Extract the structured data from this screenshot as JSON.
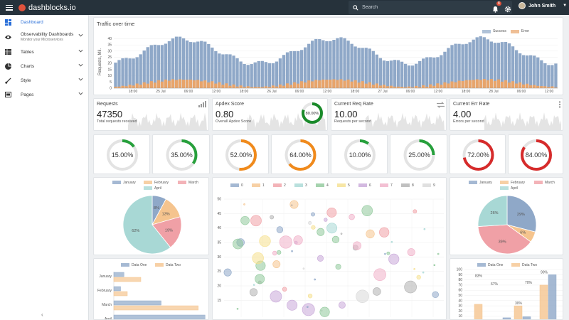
{
  "app": {
    "brand": "dashblocks.io"
  },
  "header": {
    "search_placeholder": "Search",
    "notifications_count": "8",
    "user_name": "John Smith"
  },
  "sidebar": {
    "items": [
      {
        "label": "Dashboard",
        "icon": "dashboard-icon",
        "active": true
      },
      {
        "label": "Observability Dashboards",
        "sub": "Monitor your Microservices",
        "icon": "eye-icon"
      },
      {
        "label": "Tables",
        "icon": "table-icon"
      },
      {
        "label": "Charts",
        "icon": "pie-icon"
      },
      {
        "label": "Style",
        "icon": "brush-icon"
      },
      {
        "label": "Pages",
        "icon": "pages-icon"
      }
    ]
  },
  "traffic": {
    "title": "Traffic over time",
    "ylabel": "Requests, Mil.",
    "legend": [
      "Success",
      "Error"
    ],
    "colors": {
      "success": "#8fa8c8",
      "error": "#e8a46a"
    },
    "yticks": [
      0,
      5,
      10,
      15,
      20,
      25,
      30,
      35,
      40
    ],
    "xticks": [
      "18:00",
      "25 Jul",
      "06:00",
      "12:00",
      "18:00",
      "26 Jul",
      "06:00",
      "12:00",
      "18:00",
      "27 Jul",
      "06:00",
      "12:00",
      "18:00",
      "28 Jul",
      "06:00",
      "12:00"
    ]
  },
  "kpis": [
    {
      "title": "Requests",
      "value": "47350",
      "sub": "Total requests received",
      "icon": "signal-icon"
    },
    {
      "title": "Apdex Score",
      "value": "0.80",
      "sub": "Overall Apdex Score",
      "gauge": "80.00%",
      "gauge_value": 80
    },
    {
      "title": "Current Req Rate",
      "value": "10.00",
      "sub": "Requests per second",
      "icon": "swap-icon"
    },
    {
      "title": "Current Err Rate",
      "value": "4.00",
      "sub": "Errors per second",
      "icon": "menu-dots-icon"
    }
  ],
  "gauges": [
    {
      "label": "15.00%",
      "value": 15,
      "color": "#27a03c"
    },
    {
      "label": "35.00%",
      "value": 35,
      "color": "#27a03c"
    },
    {
      "label": "52.00%",
      "value": 52,
      "color": "#f08a1c"
    },
    {
      "label": "64.00%",
      "value": 64,
      "color": "#f08a1c"
    },
    {
      "label": "10.00%",
      "value": 10,
      "color": "#27a03c"
    },
    {
      "label": "25.00%",
      "value": 25,
      "color": "#27a03c"
    },
    {
      "label": "72.00%",
      "value": 72,
      "color": "#d62b2b"
    },
    {
      "label": "84.00%",
      "value": 84,
      "color": "#d62b2b"
    }
  ],
  "pie_left": {
    "legend": [
      "January",
      "February",
      "March",
      "April"
    ],
    "colors": [
      "#8fa8c8",
      "#f5c48e",
      "#f0a0a6",
      "#a8d8d5"
    ],
    "values": [
      8,
      13,
      19,
      62
    ],
    "labels": [
      "8%",
      "13%",
      "19%",
      "62%"
    ]
  },
  "pie_right": {
    "legend": [
      "January",
      "February",
      "March",
      "April"
    ],
    "colors": [
      "#8fa8c8",
      "#f5c48e",
      "#f0a0a6",
      "#a8d8d5"
    ],
    "values": [
      29,
      6,
      39,
      26
    ],
    "labels": [
      "29%",
      "6%",
      "39%",
      "26%"
    ]
  },
  "bubble": {
    "legend": [
      "0",
      "1",
      "2",
      "3",
      "4",
      "5",
      "6",
      "7",
      "8",
      "9"
    ],
    "colors": [
      "#8fa8c8",
      "#f5c48e",
      "#f0a0a6",
      "#a8d8d5",
      "#8fc89a",
      "#f5e08e",
      "#c8a8d8",
      "#f0b0c8",
      "#b0b0b0",
      "#d8d8d8"
    ],
    "yticks": [
      50,
      45,
      40,
      35,
      30,
      25,
      20,
      15
    ]
  },
  "hbar": {
    "legend": [
      "Data One",
      "Data Two"
    ],
    "categories": [
      "January",
      "February",
      "March",
      "April"
    ],
    "series": [
      {
        "name": "Data One",
        "values": [
          15,
          10,
          70,
          135
        ]
      },
      {
        "name": "Data Two",
        "values": [
          40,
          20,
          125,
          115
        ]
      }
    ],
    "colors": [
      "#8fa8c8",
      "#f5c48e"
    ]
  },
  "vbar": {
    "legend": [
      "Data One",
      "Data Two"
    ],
    "yticks": [
      100,
      90,
      80,
      70,
      60,
      50,
      40,
      30,
      20,
      10,
      0
    ],
    "series": [
      {
        "name": "Data One",
        "values": [
          2,
          7,
          9,
          90
        ]
      },
      {
        "name": "Data Two",
        "values": [
          33,
          1,
          30,
          70
        ]
      }
    ],
    "labels": [
      "83%",
      "67%",
      "30%",
      "70%",
      "90%"
    ],
    "colors": [
      "#8fa8c8",
      "#f5c48e"
    ]
  }
}
